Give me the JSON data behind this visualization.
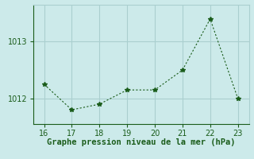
{
  "x": [
    16,
    17,
    18,
    19,
    20,
    21,
    22,
    23
  ],
  "y": [
    1012.25,
    1011.8,
    1011.9,
    1012.15,
    1012.15,
    1012.5,
    1013.4,
    1012.0
  ],
  "line_color": "#1a5c1a",
  "marker": "*",
  "marker_size": 4,
  "bg_color": "#cceaea",
  "grid_color": "#aacfcf",
  "xlabel": "Graphe pression niveau de la mer (hPa)",
  "xlabel_color": "#1a5c1a",
  "xlabel_fontsize": 7.5,
  "tick_color": "#1a5c1a",
  "tick_fontsize": 7,
  "yticks": [
    1012,
    1013
  ],
  "ylim": [
    1011.55,
    1013.65
  ],
  "xlim": [
    15.6,
    23.4
  ],
  "xticks": [
    16,
    17,
    18,
    19,
    20,
    21,
    22,
    23
  ]
}
